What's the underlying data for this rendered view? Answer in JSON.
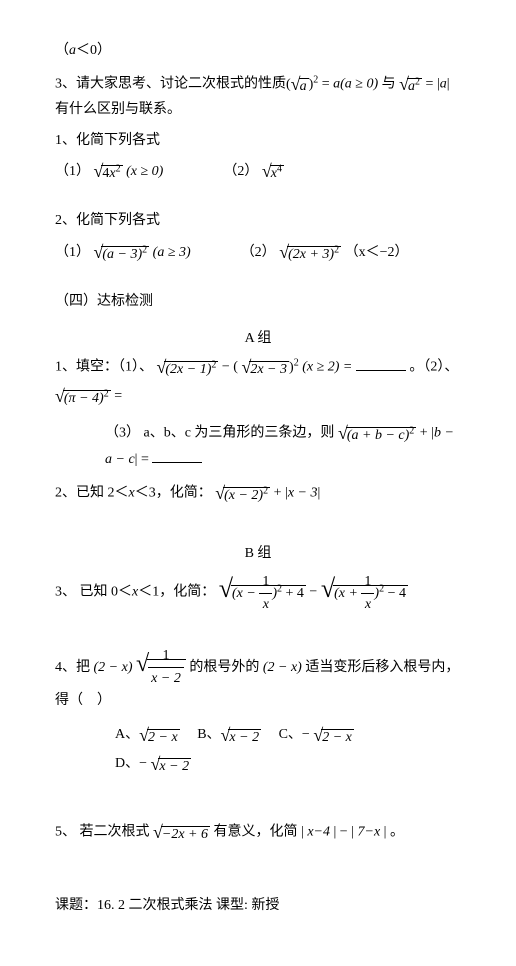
{
  "p0": "（",
  "p0m": "a",
  "p0b": "＜0）",
  "p3": "3、请大家思考、讨论二次根式的性质",
  "p3_m1_open": "(",
  "p3_m1_rad": "a",
  "p3_m1_close": ")",
  "p3_m1_sup": "2",
  "p3_eq1": " = ",
  "p3_m2": "a(a ≥ 0)",
  "p3_mid": " 与 ",
  "p3_m3_rad": "a",
  "p3_m3_sup": "2",
  "p3_eq2": " = |",
  "p3_m4": "a",
  "p3_m4b": "| ",
  "p3_tail": "有什么区别与联系。",
  "s1": "1、化简下列各式",
  "s1_1_lbl": "（1）",
  "s1_1_rad": "4x",
  "s1_1_sup": "2",
  "s1_1_cond": " (x ≥ 0)",
  "s1_2_lbl": "（2）",
  "s1_2_rad": "x",
  "s1_2_sup": "4",
  "s2": "2、化简下列各式",
  "s2_1_lbl": "（1）",
  "s2_1_rad": "(a − 3)",
  "s2_1_sup": "2",
  "s2_1_cond": "  (a ≥ 3)",
  "s2_2_lbl": "（2）",
  "s2_2_rad": "(2x + 3)",
  "s2_2_sup": "2",
  "s2_2_cond": "（x＜−2）",
  "sec4": "（四）达标检测",
  "groupA": "A 组",
  "a1": "1、填空：（1）、",
  "a1_r1": "(2x − 1)",
  "a1_r1_sup": "2",
  "a1_minus": " − (",
  "a1_r2": "2x − 3",
  "a1_r2_close": ")",
  "a1_r2_sup": "2",
  "a1_cond": " (x ≥ 2) = ",
  "a1_dot": "。（2）、",
  "a1_r3": "(π − 4)",
  "a1_r3_sup": "2",
  "a1_eq2": " =",
  "a1_3_pre": "（3）",
  "a1_3_txt": "a、b、c 为三角形的三条边，则 ",
  "a1_3_rad": "(a + b − c)",
  "a1_3_sup": "2",
  "a1_3_plus": " + |",
  "a1_3_abs": "b − a − c",
  "a1_3_abs_close": "| = ",
  "a2": "2、已知 2＜",
  "a2_x": "x",
  "a2_b": "＜3，化简：",
  "a2_rad": "(x − 2)",
  "a2_sup": "2",
  "a2_plus": " + |",
  "a2_abs": "x − 3",
  "a2_abs_close": "|",
  "groupB": "B 组",
  "b3": "3、 已知 0＜",
  "b3_x": "x",
  "b3_b": "＜1，化简：",
  "b3_r1_a": "(x − ",
  "b3_r1_num": "1",
  "b3_r1_den": "x",
  "b3_r1_b": ")",
  "b3_r1_sup": "2",
  "b3_r1_c": " + 4",
  "b3_minus": " − ",
  "b3_r2_a": "(x + ",
  "b3_r2_num": "1",
  "b3_r2_den": "x",
  "b3_r2_b": ")",
  "b3_r2_sup": "2",
  "b3_r2_c": " − 4",
  "b4": "4、把",
  "b4_m1": "(2 − x)",
  "b4_r_num": "1",
  "b4_r_den": "x − 2",
  "b4_mid": " 的根号外的",
  "b4_m2": "(2 − x)",
  "b4_tail": " 适当变形后移入根号内，得（　）",
  "b4_A": "A、",
  "b4_A_rad": "2 − x",
  "b4_B": "B、",
  "b4_B_rad": "x − 2",
  "b4_C": "C、− ",
  "b4_C_rad": "2 − x",
  "b4_D": "D、− ",
  "b4_D_rad": "x − 2",
  "b5": "5、 若二次根式 ",
  "b5_rad": "−2x + 6",
  "b5_mid": " 有意义，化简 | ",
  "b5_abs1": "x−4",
  "b5_mid2": " | − | ",
  "b5_abs2": "7−x",
  "b5_tail": " | 。",
  "footer": "课题：16. 2 二次根式乘法    课型: 新授"
}
